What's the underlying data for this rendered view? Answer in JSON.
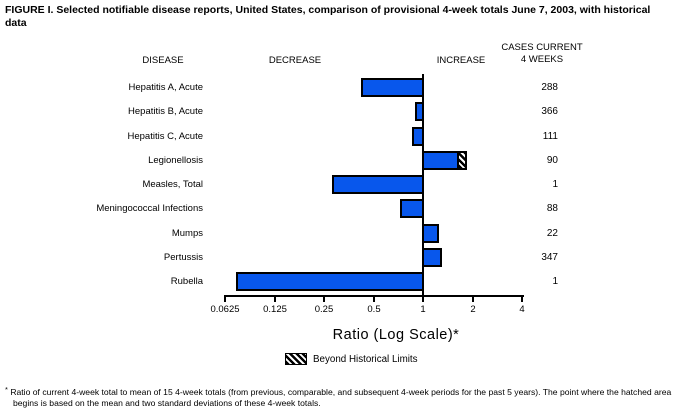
{
  "title": "FIGURE I. Selected notifiable disease reports, United States, comparison of provisional 4-week totals June 7, 2003, with historical data",
  "header": {
    "disease": "DISEASE",
    "decrease": "DECREASE",
    "increase": "INCREASE",
    "cases_line1": "CASES CURRENT",
    "cases_line2": "4 WEEKS"
  },
  "chart_data": {
    "type": "bar",
    "orientation": "horizontal",
    "scale": "log2",
    "baseline_ratio": 1,
    "xlim": [
      0.0625,
      4
    ],
    "axis_ticks": [
      "0.0625",
      "0.125",
      "0.25",
      "0.5",
      "1",
      "2",
      "4"
    ],
    "xlabel": "Ratio (Log Scale)*",
    "legend": [
      {
        "label": "Beyond Historical Limits",
        "swatch": "black-white-diagonal-hatch"
      }
    ],
    "rows": [
      {
        "disease": "Hepatitis A, Acute",
        "ratio": 0.42,
        "cases_current_4_weeks": 288,
        "beyond_historical_limits": false
      },
      {
        "disease": "Hepatitis B, Acute",
        "ratio": 0.89,
        "cases_current_4_weeks": 366,
        "beyond_historical_limits": false
      },
      {
        "disease": "Hepatitis C, Acute",
        "ratio": 0.86,
        "cases_current_4_weeks": 111,
        "beyond_historical_limits": false
      },
      {
        "disease": "Legionellosis",
        "ratio": 1.85,
        "cases_current_4_weeks": 90,
        "beyond_historical_limits": true,
        "hatch_start_ratio": 1.6
      },
      {
        "disease": "Measles, Total",
        "ratio": 0.28,
        "cases_current_4_weeks": 1,
        "beyond_historical_limits": false
      },
      {
        "disease": "Meningococcal Infections",
        "ratio": 0.72,
        "cases_current_4_weeks": 88,
        "beyond_historical_limits": false
      },
      {
        "disease": "Mumps",
        "ratio": 1.25,
        "cases_current_4_weeks": 22,
        "beyond_historical_limits": false
      },
      {
        "disease": "Pertussis",
        "ratio": 1.31,
        "cases_current_4_weeks": 347,
        "beyond_historical_limits": false
      },
      {
        "disease": "Rubella",
        "ratio": 0.073,
        "cases_current_4_weeks": 1,
        "beyond_historical_limits": false
      }
    ]
  },
  "colors": {
    "bar_fill": "#0857ec",
    "bar_border": "#000000",
    "axis": "#000000"
  },
  "footnote": {
    "marker": "*",
    "line1": "Ratio of current 4-week total to mean of 15 4-week totals (from previous, comparable, and subsequent 4-week periods for the past 5 years). The point where the hatched area",
    "line2": "begins is based on the mean and two standard deviations of these 4-week totals."
  }
}
